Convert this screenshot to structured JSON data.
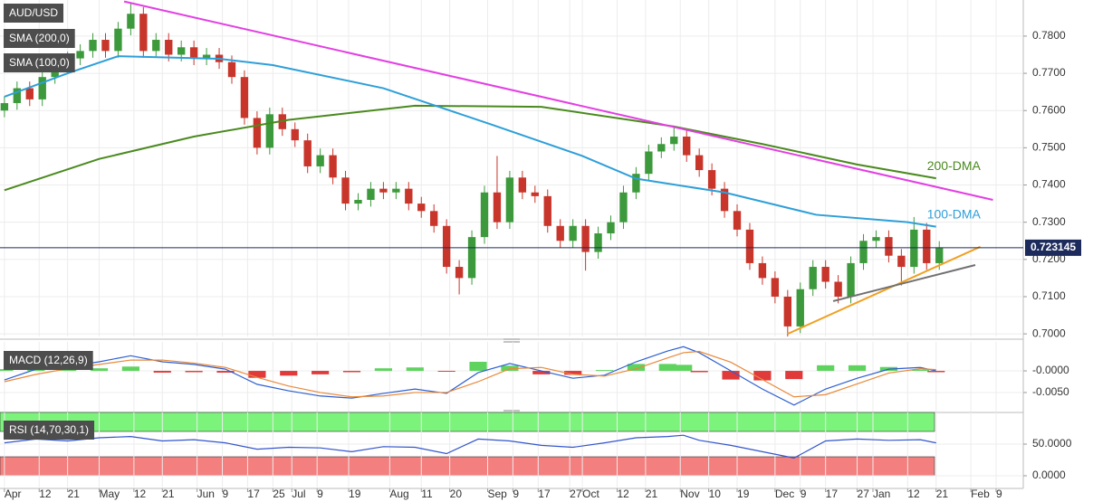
{
  "chart_data": [
    {
      "type": "candlestick",
      "title": "AUD/USD",
      "xlim": [
        -1.4,
        322.6
      ],
      "ylim": [
        0.6993,
        0.7897
      ],
      "yticks": [
        {
          "value": 0.7,
          "label": "0.7000"
        },
        {
          "value": 0.71,
          "label": "0.7100"
        },
        {
          "value": 0.72,
          "label": "0.7200"
        },
        {
          "value": 0.73,
          "label": "0.7300"
        },
        {
          "value": 0.74,
          "label": "0.7400"
        },
        {
          "value": 0.75,
          "label": "0.7500"
        },
        {
          "value": 0.76,
          "label": "0.7600"
        },
        {
          "value": 0.77,
          "label": "0.7700"
        },
        {
          "value": 0.78,
          "label": "0.7800"
        }
      ],
      "grid": true,
      "up_color": "#3c9a3c",
      "down_color": "#c8352b",
      "x": [
        0,
        4,
        8,
        12,
        16,
        20,
        24,
        28,
        32,
        36,
        40,
        44,
        48,
        52,
        56,
        60,
        64,
        68,
        72,
        76,
        80,
        84,
        88,
        92,
        96,
        100,
        104,
        108,
        112,
        116,
        120,
        124,
        128,
        132,
        136,
        140,
        144,
        148,
        152,
        156,
        160,
        164,
        168,
        172,
        176,
        180,
        184,
        188,
        192,
        196,
        200,
        204,
        208,
        212,
        216,
        220,
        224,
        228,
        232,
        236,
        240,
        244,
        248,
        252,
        256,
        260,
        264,
        268,
        272,
        276,
        280,
        284,
        288,
        292,
        296
      ],
      "open": [
        0.76,
        0.762,
        0.766,
        0.763,
        0.769,
        0.772,
        0.774,
        0.776,
        0.779,
        0.776,
        0.782,
        0.786,
        0.776,
        0.779,
        0.775,
        0.777,
        0.774,
        0.775,
        0.773,
        0.769,
        0.758,
        0.75,
        0.759,
        0.755,
        0.752,
        0.745,
        0.748,
        0.742,
        0.735,
        0.736,
        0.739,
        0.738,
        0.739,
        0.735,
        0.733,
        0.729,
        0.718,
        0.715,
        0.726,
        0.738,
        0.73,
        0.742,
        0.738,
        0.737,
        0.729,
        0.725,
        0.729,
        0.722,
        0.727,
        0.73,
        0.738,
        0.743,
        0.749,
        0.751,
        0.753,
        0.748,
        0.744,
        0.739,
        0.733,
        0.728,
        0.719,
        0.715,
        0.71,
        0.702,
        0.712,
        0.718,
        0.714,
        0.71,
        0.719,
        0.725,
        0.726,
        0.721,
        0.718,
        0.728,
        0.719
      ],
      "high": [
        0.7638,
        0.7678,
        0.7678,
        0.7708,
        0.7738,
        0.7758,
        0.7778,
        0.7808,
        0.7808,
        0.7838,
        0.789,
        0.7878,
        0.7808,
        0.7808,
        0.7788,
        0.7788,
        0.7768,
        0.7768,
        0.7748,
        0.7708,
        0.7598,
        0.7608,
        0.7608,
        0.7568,
        0.7538,
        0.7498,
        0.7498,
        0.7438,
        0.7378,
        0.7408,
        0.7408,
        0.7408,
        0.7408,
        0.7368,
        0.7348,
        0.7308,
        0.7198,
        0.7278,
        0.7398,
        0.7478,
        0.7438,
        0.7438,
        0.7398,
        0.7388,
        0.7308,
        0.7308,
        0.7308,
        0.7288,
        0.7318,
        0.7398,
        0.7448,
        0.7508,
        0.7528,
        0.7556,
        0.7548,
        0.7498,
        0.7458,
        0.7408,
        0.7348,
        0.7298,
        0.7208,
        0.7168,
        0.7118,
        0.7138,
        0.7198,
        0.7198,
        0.7158,
        0.7208,
        0.7268,
        0.7278,
        0.7278,
        0.7228,
        0.7314,
        0.7298,
        0.7249
      ],
      "low": [
        0.7582,
        0.7602,
        0.7612,
        0.7612,
        0.7672,
        0.7702,
        0.7722,
        0.7742,
        0.7742,
        0.7742,
        0.7802,
        0.7742,
        0.7742,
        0.7732,
        0.7732,
        0.7722,
        0.7722,
        0.7712,
        0.7672,
        0.7562,
        0.7482,
        0.7482,
        0.7532,
        0.7502,
        0.7432,
        0.7432,
        0.7402,
        0.7332,
        0.7332,
        0.7342,
        0.7362,
        0.7362,
        0.7332,
        0.7312,
        0.7272,
        0.7162,
        0.7106,
        0.7132,
        0.7242,
        0.7282,
        0.7282,
        0.7362,
        0.7352,
        0.7272,
        0.7232,
        0.7232,
        0.717,
        0.7202,
        0.7252,
        0.7282,
        0.7362,
        0.7412,
        0.7472,
        0.7492,
        0.7462,
        0.7422,
        0.7372,
        0.7312,
        0.7262,
        0.7172,
        0.7132,
        0.7082,
        0.6993,
        0.7002,
        0.7102,
        0.7122,
        0.7082,
        0.7082,
        0.7172,
        0.7232,
        0.7192,
        0.713,
        0.7162,
        0.7172,
        0.7172
      ],
      "close": [
        0.762,
        0.766,
        0.763,
        0.769,
        0.772,
        0.774,
        0.776,
        0.779,
        0.776,
        0.782,
        0.786,
        0.776,
        0.779,
        0.775,
        0.777,
        0.774,
        0.775,
        0.773,
        0.769,
        0.758,
        0.75,
        0.759,
        0.755,
        0.752,
        0.745,
        0.748,
        0.742,
        0.735,
        0.736,
        0.739,
        0.738,
        0.739,
        0.735,
        0.733,
        0.729,
        0.718,
        0.715,
        0.726,
        0.738,
        0.73,
        0.742,
        0.738,
        0.737,
        0.729,
        0.725,
        0.729,
        0.722,
        0.727,
        0.73,
        0.738,
        0.743,
        0.749,
        0.751,
        0.753,
        0.748,
        0.744,
        0.739,
        0.733,
        0.728,
        0.719,
        0.715,
        0.71,
        0.702,
        0.712,
        0.718,
        0.714,
        0.71,
        0.719,
        0.725,
        0.726,
        0.721,
        0.718,
        0.728,
        0.719,
        0.7231
      ],
      "series": [
        {
          "name": "SMA (200,0)",
          "label": "200-DMA",
          "color": "#4a8a1e",
          "x": [
            0,
            30,
            60,
            90,
            130,
            170,
            212,
            240,
            270,
            295
          ],
          "values": [
            0.7386,
            0.747,
            0.753,
            0.7575,
            0.7613,
            0.761,
            0.7557,
            0.751,
            0.7455,
            0.7418
          ]
        },
        {
          "name": "SMA (100,0)",
          "label": "100-DMA",
          "color": "#2d9fd9",
          "x": [
            0,
            20,
            36,
            68,
            85,
            120,
            154,
            183,
            200,
            228,
            257,
            286,
            295
          ],
          "values": [
            0.7637,
            0.77,
            0.7746,
            0.7739,
            0.7722,
            0.766,
            0.7563,
            0.7478,
            0.7417,
            0.738,
            0.732,
            0.73,
            0.7288
          ]
        }
      ],
      "trend_lines": [
        {
          "color": "#e33fe3",
          "x": [
            37.9,
            313
          ],
          "values": [
            0.7893,
            0.736
          ]
        },
        {
          "color": "#f0a020",
          "x": [
            248,
            309
          ],
          "values": [
            0.7,
            0.7234
          ]
        },
        {
          "color": "#707070",
          "x": [
            262.4,
            307.4
          ],
          "values": [
            0.7088,
            0.7185
          ]
        }
      ],
      "last_price": 0.723145,
      "last_price_color": "#1d2b5c"
    },
    {
      "type": "macd",
      "title": "MACD (12,26,9)",
      "xlim": [
        -1.4,
        322.6
      ],
      "ylim": [
        -0.0094,
        0.0067
      ],
      "yticks": [
        {
          "value": 0,
          "label": "-0.0000"
        },
        {
          "value": -0.005,
          "label": "-0.0050"
        }
      ],
      "grid": true,
      "x": [
        0,
        10,
        20,
        30,
        40,
        50,
        60,
        70,
        80,
        90,
        100,
        110,
        120,
        130,
        140,
        150,
        160,
        170,
        180,
        190,
        200,
        210,
        215,
        220,
        230,
        240,
        250,
        260,
        270,
        280,
        290,
        295
      ],
      "series": [
        {
          "color": "#2d5fd0",
          "values": [
            -0.0021,
            0.0004,
            0.001,
            0.0021,
            0.0035,
            0.0021,
            0.0015,
            0.0004,
            -0.0031,
            -0.0046,
            -0.0058,
            -0.0063,
            -0.0052,
            -0.0042,
            -0.0052,
            -0.0004,
            0.0017,
            0,
            -0.0017,
            -0.001,
            0.0021,
            0.0046,
            0.0056,
            0.0042,
            0,
            -0.0042,
            -0.0079,
            -0.0042,
            -0.0017,
            0.0004,
            0.0008,
            0
          ]
        },
        {
          "color": "#e8893a",
          "values": [
            -0.0025,
            -0.0008,
            0.0005,
            0.0015,
            0.0025,
            0.0025,
            0.0018,
            0.0008,
            -0.0015,
            -0.0035,
            -0.005,
            -0.006,
            -0.0058,
            -0.005,
            -0.005,
            -0.0025,
            0.0005,
            0.0008,
            -0.0008,
            -0.0012,
            0.0005,
            0.003,
            0.0042,
            0.0045,
            0.002,
            -0.002,
            -0.006,
            -0.0055,
            -0.003,
            -0.0005,
            0.0005,
            0.0003
          ]
        }
      ],
      "histogram": {
        "up_color": "#5ed35e",
        "down_color": "#e03a3a",
        "values": [
          0.0004,
          0.0012,
          0.0005,
          0.0006,
          0.001,
          -0.0004,
          -0.0003,
          -0.0004,
          -0.0016,
          -0.0011,
          -0.0008,
          -0.0003,
          0.0006,
          0.0008,
          -0.0002,
          0.0021,
          0.0012,
          -0.0008,
          -0.0009,
          0.0002,
          0.0016,
          0.0016,
          0.0014,
          -0.0003,
          -0.002,
          -0.0022,
          -0.0019,
          0.0013,
          0.0013,
          0.0009,
          0.0003,
          -0.0003
        ]
      }
    },
    {
      "type": "rsi",
      "title": "RSI (14,70,30,1)",
      "xlim": [
        -1.4,
        322.6
      ],
      "ylim": [
        -20,
        100
      ],
      "yticks": [
        {
          "value": 50,
          "label": "50.0000"
        },
        {
          "value": 0,
          "label": "0.0000"
        }
      ],
      "grid": true,
      "bands": [
        {
          "range": [
            70,
            100
          ],
          "color": "#7cf47c"
        },
        {
          "range": [
            0,
            30
          ],
          "color": "#f47f7f"
        }
      ],
      "x": [
        0,
        10,
        20,
        30,
        40,
        50,
        60,
        70,
        80,
        90,
        100,
        110,
        120,
        130,
        140,
        150,
        160,
        170,
        180,
        190,
        200,
        210,
        215,
        220,
        230,
        240,
        250,
        260,
        270,
        280,
        290,
        295
      ],
      "color": "#3355cc",
      "values": [
        52,
        58,
        55,
        60,
        62,
        55,
        57,
        52,
        42,
        45,
        44,
        38,
        46,
        45,
        35,
        58,
        55,
        48,
        45,
        52,
        60,
        62,
        64,
        56,
        48,
        38,
        28,
        55,
        58,
        56,
        57,
        52
      ],
      "xticks": [
        {
          "value": 0,
          "label": "Apr"
        },
        {
          "value": 11,
          "label": "12"
        },
        {
          "value": 20,
          "label": "21"
        },
        {
          "value": 30,
          "label": "May"
        },
        {
          "value": 41,
          "label": "12"
        },
        {
          "value": 50,
          "label": "21"
        },
        {
          "value": 61,
          "label": "Jun"
        },
        {
          "value": 69,
          "label": "9"
        },
        {
          "value": 77,
          "label": "17"
        },
        {
          "value": 85,
          "label": "25"
        },
        {
          "value": 91,
          "label": "Jul"
        },
        {
          "value": 99,
          "label": "9"
        },
        {
          "value": 109,
          "label": "19"
        },
        {
          "value": 122,
          "label": "Aug"
        },
        {
          "value": 132,
          "label": "11"
        },
        {
          "value": 141,
          "label": "20"
        },
        {
          "value": 153,
          "label": "Sep"
        },
        {
          "value": 161,
          "label": "9"
        },
        {
          "value": 169,
          "label": "17"
        },
        {
          "value": 179,
          "label": "27"
        },
        {
          "value": 183,
          "label": "Oct"
        },
        {
          "value": 194,
          "label": "12"
        },
        {
          "value": 203,
          "label": "21"
        },
        {
          "value": 214,
          "label": "Nov"
        },
        {
          "value": 223,
          "label": "10"
        },
        {
          "value": 232,
          "label": "19"
        },
        {
          "value": 244,
          "label": "Dec"
        },
        {
          "value": 252,
          "label": "9"
        },
        {
          "value": 260,
          "label": "17"
        },
        {
          "value": 270,
          "label": "27"
        },
        {
          "value": 275,
          "label": "Jan"
        },
        {
          "value": 286,
          "label": "12"
        },
        {
          "value": 295,
          "label": "21"
        },
        {
          "value": 306,
          "label": "Feb"
        },
        {
          "value": 314,
          "label": "9"
        }
      ]
    }
  ]
}
